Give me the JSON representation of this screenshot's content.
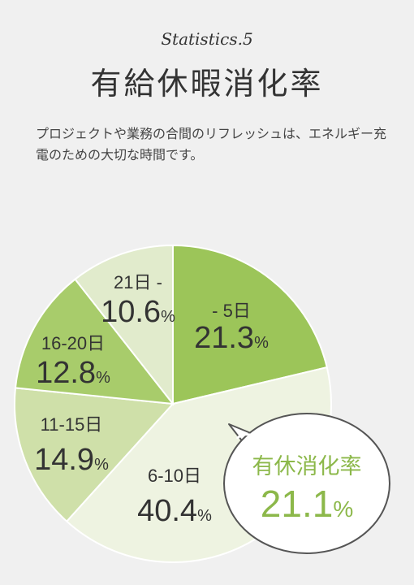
{
  "header": {
    "kicker": "Statistics.5",
    "title": "有給休暇消化率",
    "description": "プロジェクトや業務の合間のリフレッシュは、エネルギー充電のための大切な時間です。"
  },
  "chart_data": {
    "type": "pie",
    "categories": [
      "- 5日",
      "6-10日",
      "11-15日",
      "16-20日",
      "21日 -"
    ],
    "values": [
      21.3,
      40.4,
      14.9,
      12.8,
      10.6
    ],
    "unit": "%",
    "colors": [
      "#9cc559",
      "#eef3e1",
      "#cfe0a9",
      "#a8cc6b",
      "#e1ebcc"
    ],
    "annotation": {
      "label": "有休消化率",
      "value": "21.1",
      "unit": "%",
      "color": "#8cb84a"
    }
  }
}
